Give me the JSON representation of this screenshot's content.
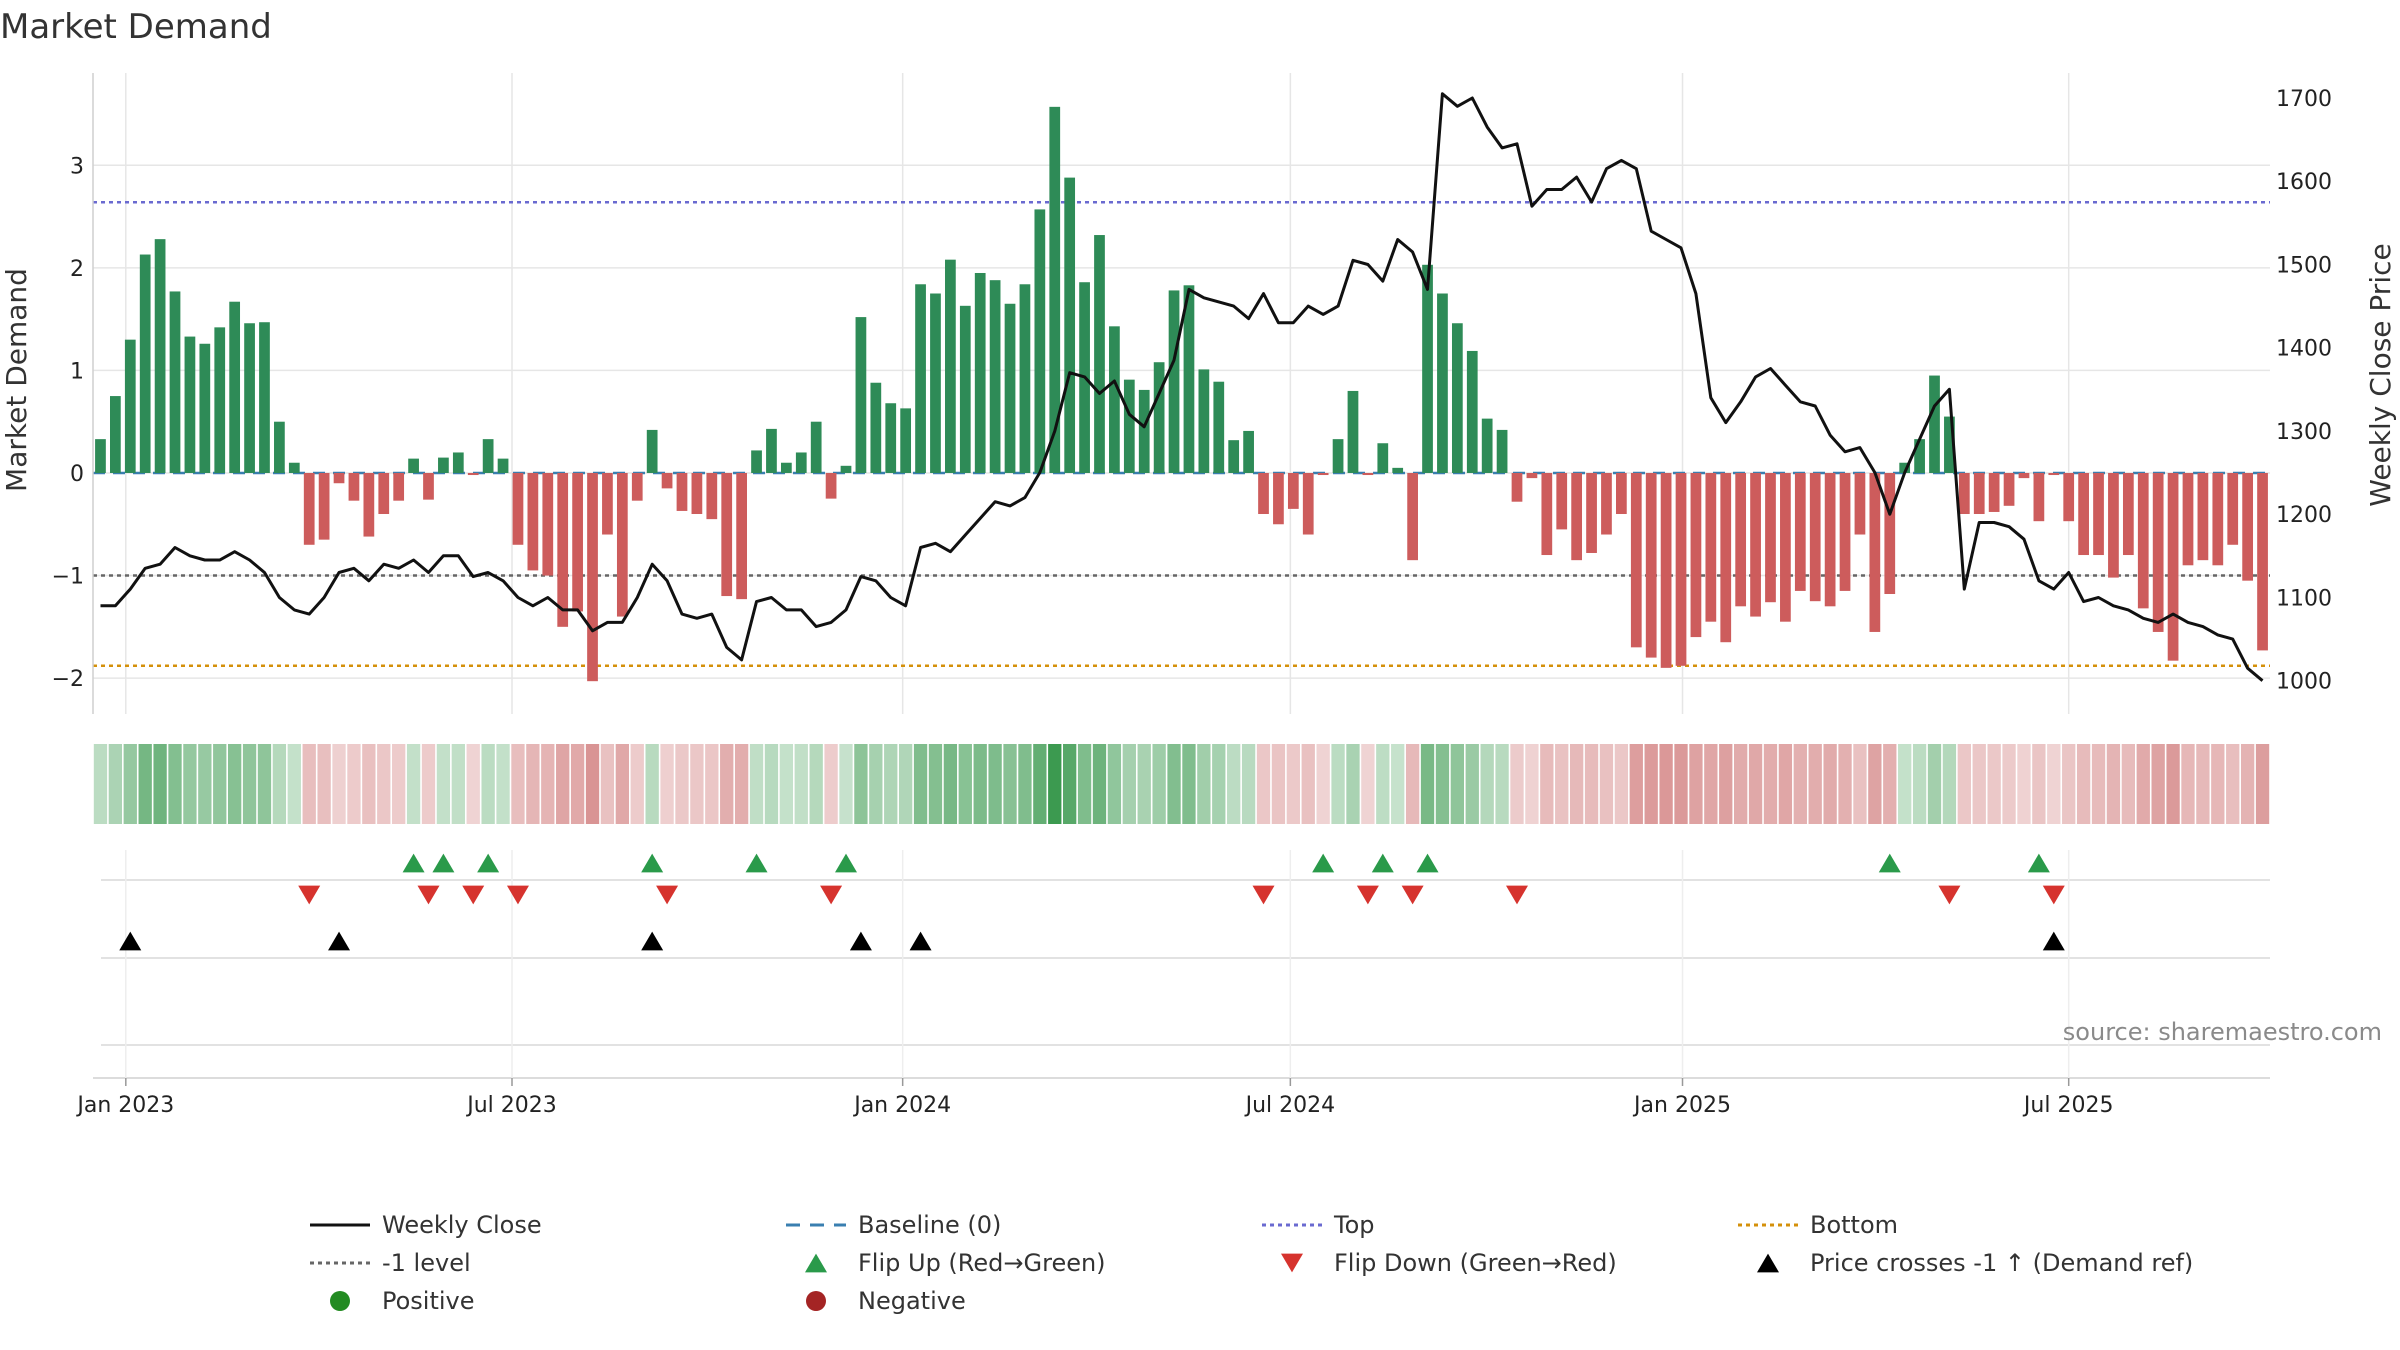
{
  "chart_data": {
    "type": "bar+line",
    "title": "Market Demand",
    "ylabel_left": "Market Demand",
    "ylabel_right": "Weekly Close Price",
    "left_yticks": [
      3,
      2,
      1,
      0,
      -1,
      -2
    ],
    "left_ytick_labels": [
      "3",
      "2",
      "1",
      "0",
      "−1",
      "−2"
    ],
    "left_ylim": [
      -2.35,
      3.9
    ],
    "right_yticks": [
      1700,
      1600,
      1500,
      1400,
      1300,
      1200,
      1100,
      1000
    ],
    "right_ytick_labels": [
      "1700",
      "1600",
      "1500",
      "1400",
      "1300",
      "1200",
      "1100",
      "1000"
    ],
    "right_ylim": [
      960,
      1730
    ],
    "x_ticks": [
      "Jan 2023",
      "Jul 2023",
      "Jan 2024",
      "Jul 2024",
      "Jan 2025",
      "Jul 2025"
    ],
    "x_tick_index": [
      1.7,
      27.6,
      53.8,
      79.8,
      106.1,
      132.0
    ],
    "reference_lines": {
      "baseline": 0,
      "top": 2.64,
      "minus_one": -1,
      "bottom": -1.88
    },
    "demand": [
      0.33,
      0.75,
      1.3,
      2.13,
      2.28,
      1.77,
      1.33,
      1.26,
      1.42,
      1.67,
      1.46,
      1.47,
      0.5,
      0.1,
      -0.7,
      -0.65,
      -0.1,
      -0.27,
      -0.62,
      -0.4,
      -0.27,
      0.14,
      -0.26,
      0.15,
      0.2,
      -0.02,
      0.33,
      0.14,
      -0.7,
      -0.95,
      -1.0,
      -1.5,
      -1.35,
      -2.03,
      -0.6,
      -1.4,
      -0.27,
      0.42,
      -0.15,
      -0.37,
      -0.4,
      -0.45,
      -1.2,
      -1.23,
      0.22,
      0.43,
      0.1,
      0.2,
      0.5,
      -0.25,
      0.07,
      1.52,
      0.88,
      0.68,
      0.63,
      1.84,
      1.75,
      2.08,
      1.63,
      1.95,
      1.88,
      1.65,
      1.84,
      2.57,
      3.57,
      2.88,
      1.86,
      2.32,
      1.43,
      0.91,
      0.81,
      1.08,
      1.78,
      1.83,
      1.01,
      0.89,
      0.32,
      0.41,
      -0.4,
      -0.5,
      -0.35,
      -0.6,
      -0.02,
      0.33,
      0.8,
      -0.02,
      0.29,
      0.05,
      -0.85,
      2.03,
      1.75,
      1.46,
      1.19,
      0.53,
      0.42,
      -0.28,
      -0.05,
      -0.8,
      -0.55,
      -0.85,
      -0.78,
      -0.6,
      -0.4,
      -1.7,
      -1.8,
      -1.9,
      -1.88,
      -1.6,
      -1.45,
      -1.65,
      -1.3,
      -1.4,
      -1.26,
      -1.45,
      -1.15,
      -1.25,
      -1.3,
      -1.15,
      -0.6,
      -1.55,
      -1.18,
      0.1,
      0.33,
      0.95,
      0.55,
      -0.4,
      -0.4,
      -0.38,
      -0.32,
      -0.05,
      -0.47,
      -0.02,
      -0.47,
      -0.8,
      -0.8,
      -1.02,
      -0.8,
      -1.32,
      -1.55,
      -1.83,
      -0.9,
      -0.85,
      -0.9,
      -0.7,
      -1.05,
      -1.73
    ],
    "weekly_close": [
      1090,
      1090,
      1110,
      1135,
      1140,
      1160,
      1150,
      1145,
      1145,
      1155,
      1145,
      1130,
      1100,
      1085,
      1080,
      1100,
      1130,
      1135,
      1120,
      1140,
      1135,
      1145,
      1130,
      1150,
      1150,
      1125,
      1130,
      1120,
      1100,
      1090,
      1100,
      1085,
      1085,
      1060,
      1070,
      1070,
      1100,
      1140,
      1120,
      1080,
      1075,
      1080,
      1040,
      1025,
      1095,
      1100,
      1085,
      1085,
      1065,
      1070,
      1085,
      1125,
      1120,
      1100,
      1090,
      1160,
      1165,
      1155,
      1175,
      1195,
      1215,
      1210,
      1220,
      1250,
      1300,
      1370,
      1365,
      1345,
      1360,
      1320,
      1305,
      1345,
      1385,
      1470,
      1460,
      1455,
      1450,
      1435,
      1465,
      1430,
      1430,
      1450,
      1440,
      1450,
      1505,
      1500,
      1480,
      1530,
      1515,
      1470,
      1705,
      1690,
      1700,
      1665,
      1640,
      1645,
      1570,
      1590,
      1590,
      1605,
      1575,
      1615,
      1625,
      1615,
      1540,
      1530,
      1520,
      1465,
      1340,
      1310,
      1335,
      1365,
      1375,
      1355,
      1335,
      1330,
      1295,
      1275,
      1280,
      1250,
      1200,
      1250,
      1290,
      1330,
      1350,
      1110,
      1190,
      1190,
      1185,
      1170,
      1120,
      1110,
      1130,
      1095,
      1100,
      1090,
      1085,
      1075,
      1070,
      1080,
      1070,
      1065,
      1055,
      1050,
      1015,
      1000
    ],
    "intensity_strip": {
      "positive_color": "#3c9a50",
      "negative_color": "#c86464"
    },
    "flip_up_index": [
      21,
      23,
      26,
      37,
      44,
      50,
      82,
      86,
      89,
      120,
      130
    ],
    "flip_down_index": [
      14,
      22,
      25,
      28,
      38,
      49,
      78,
      85,
      88,
      95,
      124,
      131
    ],
    "price_cross_index": [
      2,
      16,
      37,
      51,
      55,
      131
    ],
    "source_text": "source: sharemaestro.com",
    "legend": [
      {
        "label": "Weekly Close",
        "kind": "line-solid",
        "color": "#111111"
      },
      {
        "label": "Baseline (0)",
        "kind": "line-dashed",
        "color": "#3a7fb0"
      },
      {
        "label": "Top",
        "kind": "line-dotted",
        "color": "#6a6ad0"
      },
      {
        "label": "Bottom",
        "kind": "line-dotted",
        "color": "#d4900a"
      },
      {
        "label": "-1 level",
        "kind": "line-dotted",
        "color": "#666666"
      },
      {
        "label": "Flip Up (Red→Green)",
        "kind": "triangle-up",
        "color": "#2a9a4a"
      },
      {
        "label": "Flip Down (Green→Red)",
        "kind": "triangle-down",
        "color": "#d6332e"
      },
      {
        "label": "Price crosses -1 ↑ (Demand ref)",
        "kind": "triangle-up",
        "color": "#000000"
      },
      {
        "label": "Positive",
        "kind": "circle",
        "color": "#238b22"
      },
      {
        "label": "Negative",
        "kind": "circle",
        "color": "#a42424"
      }
    ],
    "colors": {
      "positive_bar": "#2e8b57",
      "negative_bar": "#cd5c5c",
      "price_line": "#111111"
    }
  }
}
